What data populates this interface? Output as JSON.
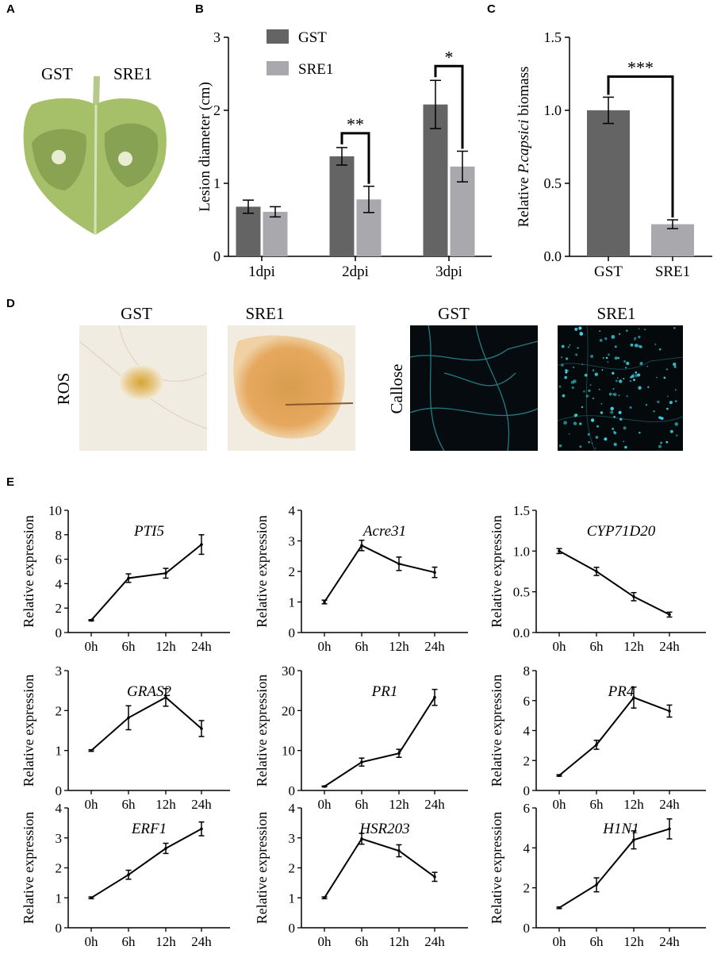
{
  "panels": {
    "a": {
      "label": "A",
      "leaf_labels": [
        "GST",
        "SRE1"
      ],
      "colors": {
        "leaf": "#a6c06a",
        "lesion": "#7f9a4c",
        "spot": "#e8ecd0"
      }
    },
    "b": {
      "label": "B",
      "chart_data": {
        "type": "bar",
        "categories": [
          "1dpi",
          "2dpi",
          "3dpi"
        ],
        "series": [
          {
            "name": "GST",
            "color": "#646464",
            "values": [
              0.68,
              1.37,
              2.08
            ],
            "errors": [
              0.09,
              0.12,
              0.33
            ]
          },
          {
            "name": "SRE1",
            "color": "#a9a9ad",
            "values": [
              0.61,
              0.78,
              1.23
            ],
            "errors": [
              0.07,
              0.18,
              0.21
            ]
          }
        ],
        "ylabel": "Lesion diameter (cm)",
        "ylim": [
          0,
          3
        ],
        "yticks": [
          "0",
          "1",
          "2",
          "3"
        ],
        "significance": [
          {
            "category": "2dpi",
            "text": "**"
          },
          {
            "category": "3dpi",
            "text": "*"
          }
        ],
        "legend": "top-left"
      }
    },
    "c": {
      "label": "C",
      "chart_data": {
        "type": "bar",
        "categories": [
          "GST",
          "SRE1"
        ],
        "values": [
          1.0,
          0.22
        ],
        "errors": [
          0.09,
          0.03
        ],
        "colors": [
          "#646464",
          "#a9a9ad"
        ],
        "ylabel_prefix": "Relative ",
        "ylabel_italic": "P.capsici",
        "ylabel_suffix": " biomass",
        "ylim": [
          0,
          1.5
        ],
        "yticks": [
          "0.0",
          "0.5",
          "1.0",
          "1.5"
        ],
        "significance": "***"
      }
    },
    "d": {
      "label": "D",
      "ros_label": "ROS",
      "callose_label": "Callose",
      "columns": [
        "GST",
        "SRE1",
        "GST",
        "SRE1"
      ]
    },
    "e": {
      "label": "E",
      "xlabel_ticks": [
        "0h",
        "6h",
        "12h",
        "24h"
      ],
      "ylabel": "Relative expression",
      "chart_data": [
        {
          "type": "line",
          "title": "PTI5",
          "x": [
            "0h",
            "6h",
            "12h",
            "24h"
          ],
          "y": [
            1.0,
            4.45,
            4.85,
            7.2
          ],
          "err": [
            0.05,
            0.35,
            0.4,
            0.8
          ],
          "ylim": [
            0,
            10
          ],
          "yticks": [
            "0",
            "2",
            "4",
            "6",
            "8",
            "10"
          ]
        },
        {
          "type": "line",
          "title": "Acre31",
          "x": [
            "0h",
            "6h",
            "12h",
            "24h"
          ],
          "y": [
            1.0,
            2.85,
            2.25,
            1.97
          ],
          "err": [
            0.06,
            0.17,
            0.22,
            0.17
          ],
          "ylim": [
            0,
            4
          ],
          "yticks": [
            "0",
            "1",
            "2",
            "3",
            "4"
          ]
        },
        {
          "type": "line",
          "title": "CYP71D20",
          "x": [
            "0h",
            "6h",
            "12h",
            "24h"
          ],
          "y": [
            1.0,
            0.75,
            0.44,
            0.22
          ],
          "err": [
            0.03,
            0.05,
            0.05,
            0.03
          ],
          "ylim": [
            0,
            1.5
          ],
          "yticks": [
            "0.0",
            "0.5",
            "1.0",
            "1.5"
          ]
        },
        {
          "type": "line",
          "title": "GRAS2",
          "x": [
            "0h",
            "6h",
            "12h",
            "24h"
          ],
          "y": [
            1.0,
            1.82,
            2.33,
            1.55
          ],
          "err": [
            0.02,
            0.3,
            0.22,
            0.2
          ],
          "ylim": [
            0,
            3
          ],
          "yticks": [
            "0",
            "1",
            "2",
            "3"
          ]
        },
        {
          "type": "line",
          "title": "PR1",
          "x": [
            "0h",
            "6h",
            "12h",
            "24h"
          ],
          "y": [
            1.0,
            7.1,
            9.3,
            23.3
          ],
          "err": [
            0.1,
            1.0,
            1.0,
            2.0
          ],
          "ylim": [
            0,
            30
          ],
          "yticks": [
            "0",
            "10",
            "20",
            "30"
          ]
        },
        {
          "type": "line",
          "title": "PR4",
          "x": [
            "0h",
            "6h",
            "12h",
            "24h"
          ],
          "y": [
            1.0,
            3.05,
            6.2,
            5.3
          ],
          "err": [
            0.05,
            0.3,
            0.7,
            0.4
          ],
          "ylim": [
            0,
            8
          ],
          "yticks": [
            "0",
            "2",
            "4",
            "6",
            "8"
          ]
        },
        {
          "type": "line",
          "title": "ERF1",
          "x": [
            "0h",
            "6h",
            "12h",
            "24h"
          ],
          "y": [
            1.0,
            1.77,
            2.65,
            3.3
          ],
          "err": [
            0.03,
            0.15,
            0.17,
            0.23
          ],
          "ylim": [
            0,
            4
          ],
          "yticks": [
            "0",
            "1",
            "2",
            "3",
            "4"
          ]
        },
        {
          "type": "line",
          "title": "HSR203",
          "x": [
            "0h",
            "6h",
            "12h",
            "24h"
          ],
          "y": [
            1.0,
            2.97,
            2.57,
            1.7
          ],
          "err": [
            0.03,
            0.18,
            0.2,
            0.15
          ],
          "ylim": [
            0,
            4
          ],
          "yticks": [
            "0",
            "1",
            "2",
            "3",
            "4"
          ]
        },
        {
          "type": "line",
          "title": "H1N1",
          "x": [
            "0h",
            "6h",
            "12h",
            "24h"
          ],
          "y": [
            1.0,
            2.15,
            4.4,
            4.95
          ],
          "err": [
            0.04,
            0.35,
            0.45,
            0.5
          ],
          "ylim": [
            0,
            6
          ],
          "yticks": [
            "0",
            "2",
            "4",
            "6"
          ]
        }
      ]
    }
  }
}
